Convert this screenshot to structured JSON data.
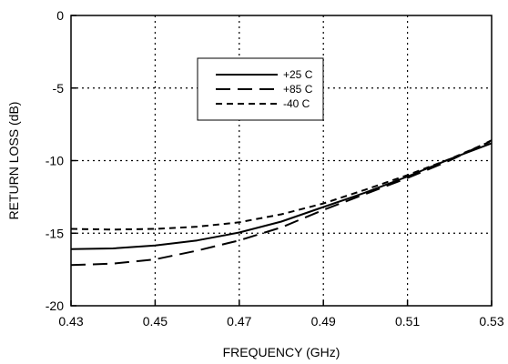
{
  "chart_data": {
    "type": "line",
    "title": "",
    "xlabel": "FREQUENCY (GHz)",
    "ylabel": "RETURN LOSS (dB)",
    "xlim": [
      0.43,
      0.53
    ],
    "ylim": [
      -20,
      0
    ],
    "xticks": [
      0.43,
      0.45,
      0.47,
      0.49,
      0.51,
      0.53
    ],
    "xtick_labels": [
      "0.43",
      "0.45",
      "0.47",
      "0.49",
      "0.51",
      "0.53"
    ],
    "yticks": [
      -20,
      -15,
      -10,
      -5,
      0
    ],
    "ytick_labels": [
      "-20",
      "-15",
      "-10",
      "-5",
      "0"
    ],
    "grid": true,
    "legend_position": "top-center",
    "series": [
      {
        "name": "+25 C",
        "dash": "solid",
        "x": [
          0.43,
          0.44,
          0.45,
          0.46,
          0.47,
          0.48,
          0.49,
          0.5,
          0.51,
          0.52,
          0.53
        ],
        "y": [
          -16.1,
          -16.05,
          -15.85,
          -15.5,
          -14.95,
          -14.2,
          -13.2,
          -12.2,
          -11.1,
          -9.9,
          -8.8
        ]
      },
      {
        "name": "+85 C",
        "dash": "long-dash",
        "x": [
          0.43,
          0.44,
          0.45,
          0.46,
          0.47,
          0.48,
          0.49,
          0.5,
          0.51,
          0.52,
          0.53
        ],
        "y": [
          -17.2,
          -17.1,
          -16.8,
          -16.2,
          -15.5,
          -14.6,
          -13.4,
          -12.3,
          -11.2,
          -10.0,
          -8.6
        ]
      },
      {
        "name": "-40 C",
        "dash": "short-dash",
        "x": [
          0.43,
          0.44,
          0.45,
          0.46,
          0.47,
          0.48,
          0.49,
          0.5,
          0.51,
          0.52,
          0.53
        ],
        "y": [
          -14.7,
          -14.75,
          -14.7,
          -14.55,
          -14.25,
          -13.7,
          -12.95,
          -12.0,
          -11.0,
          -9.9,
          -8.65
        ]
      }
    ]
  }
}
